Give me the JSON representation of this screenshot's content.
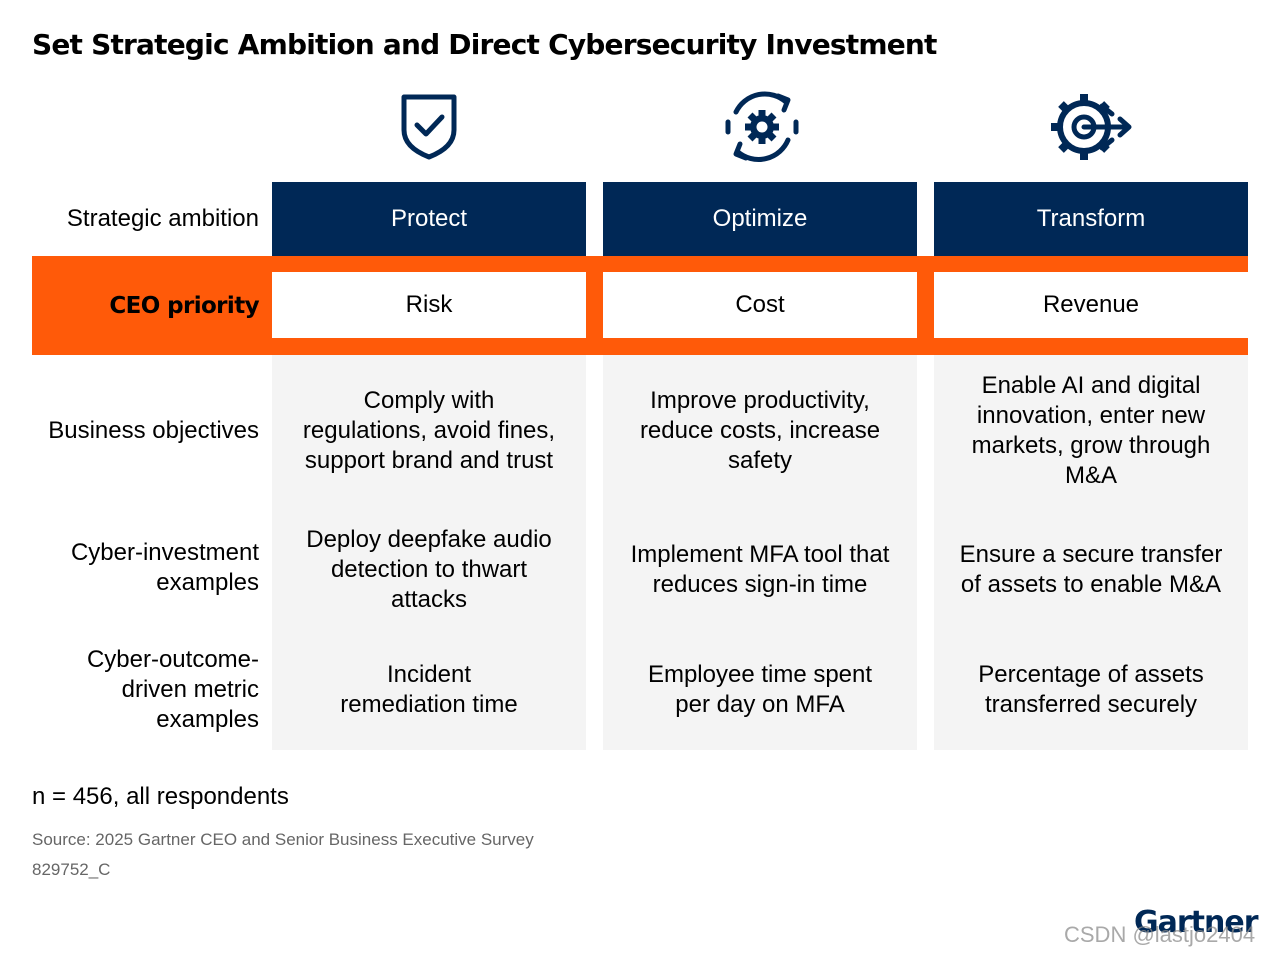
{
  "title": "Set Strategic Ambition and Direct Cybersecurity Investment",
  "icons": [
    "shield-check-icon",
    "gear-cycle-icon",
    "gear-arrow-icon"
  ],
  "colors": {
    "navy": "#002856",
    "orange": "#ff5a09",
    "cell_bg": "#f4f4f4"
  },
  "row_labels": {
    "strategic_ambition": "Strategic ambition",
    "ceo_priority": "CEO priority",
    "business_objectives": "Business objectives",
    "cyber_investment": [
      "Cyber-investment",
      "examples"
    ],
    "cyber_outcome": [
      "Cyber-outcome-",
      "driven metric",
      "examples"
    ]
  },
  "columns": [
    {
      "ambition": "Protect",
      "priority": "Risk",
      "objectives": [
        "Comply with",
        "regulations, avoid fines,",
        "support brand and trust"
      ],
      "investment": [
        "Deploy deepfake audio",
        "detection to thwart",
        "attacks"
      ],
      "metric": [
        "Incident",
        "remediation time"
      ]
    },
    {
      "ambition": "Optimize",
      "priority": "Cost",
      "objectives": [
        "Improve productivity,",
        "reduce costs, increase",
        "safety"
      ],
      "investment": [
        "Implement MFA tool that",
        "reduces sign-in time"
      ],
      "metric": [
        "Employee time spent",
        "per day on MFA"
      ]
    },
    {
      "ambition": "Transform",
      "priority": "Revenue",
      "objectives": [
        "Enable AI and digital",
        "innovation, enter new",
        "markets, grow through",
        "M&A"
      ],
      "investment": [
        "Ensure a secure transfer",
        "of assets to enable M&A"
      ],
      "metric": [
        "Percentage of assets",
        "transferred securely"
      ]
    }
  ],
  "footnote": "n = 456, all respondents",
  "source": "Source: 2025 Gartner CEO and Senior Business Executive Survey",
  "code": "829752_C",
  "logo": "Gartner",
  "watermark": "CSDN @lastjo2404"
}
